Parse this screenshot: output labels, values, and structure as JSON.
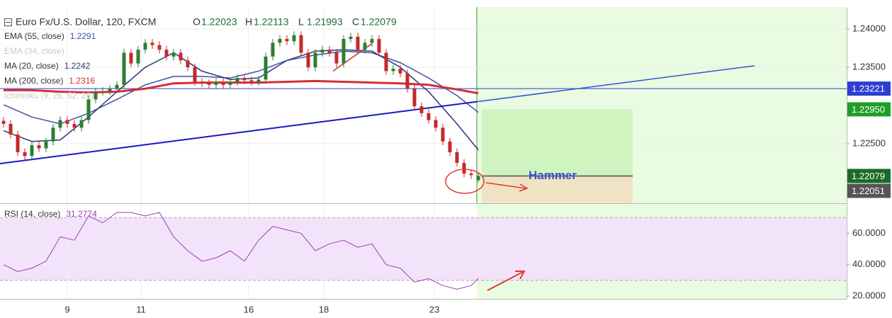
{
  "chart_data": [
    {
      "type": "candlestick",
      "title": "Euro Fx/U.S. Dollar, 120, FXCM",
      "ohlc_letters": [
        "O",
        "H",
        "L",
        "C"
      ],
      "up_color": "#2e7d32",
      "down_color": "#c62828",
      "xlim": [
        -0.5,
        119
      ],
      "ylim": [
        1.21722,
        1.24287
      ],
      "yticks": [
        {
          "value": 1.24,
          "label": "1.24000"
        },
        {
          "value": 1.235,
          "label": "1.23500"
        },
        {
          "value": 1.225,
          "label": "1.22500"
        }
      ],
      "grid": true,
      "x": [
        0,
        1,
        2,
        3,
        4,
        5,
        6,
        7,
        8,
        9,
        10,
        11,
        12,
        13,
        14,
        15,
        16,
        17,
        18,
        19,
        20,
        21,
        22,
        23,
        24,
        25,
        26,
        27,
        28,
        29,
        30,
        31,
        32,
        33,
        34,
        35,
        36,
        37,
        38,
        39,
        40,
        41,
        42,
        43,
        44,
        45,
        46,
        47,
        48,
        49,
        50,
        51,
        52,
        53,
        54,
        55,
        56,
        57,
        58,
        59,
        60,
        61,
        62,
        63,
        64,
        65,
        66,
        67
      ],
      "open": [
        1.228,
        1.2276,
        1.2262,
        1.2239,
        1.2234,
        1.2248,
        1.2244,
        1.2253,
        1.2271,
        1.2281,
        1.2276,
        1.2271,
        1.2281,
        1.2308,
        1.2318,
        1.2319,
        1.2322,
        1.2327,
        1.2369,
        1.2355,
        1.2373,
        1.2382,
        1.2379,
        1.2373,
        1.2364,
        1.2369,
        1.2359,
        1.235,
        1.2331,
        1.2329,
        1.2327,
        1.2331,
        1.2327,
        1.2331,
        1.2336,
        1.2333,
        1.2331,
        1.2334,
        1.2364,
        1.2382,
        1.2387,
        1.2384,
        1.2392,
        1.2369,
        1.235,
        1.2369,
        1.2373,
        1.2369,
        1.2355,
        1.2387,
        1.239,
        1.2373,
        1.2382,
        1.2387,
        1.2369,
        1.2345,
        1.2348,
        1.2342,
        1.2322,
        1.2299,
        1.229,
        1.2281,
        1.2271,
        1.2253,
        1.2239,
        1.2225,
        1.2211,
        1.22023
      ],
      "high": [
        1.2285,
        1.2281,
        1.2267,
        1.2244,
        1.2253,
        1.2253,
        1.2258,
        1.2276,
        1.2286,
        1.2286,
        1.2281,
        1.2286,
        1.2313,
        1.2323,
        1.2324,
        1.2327,
        1.2332,
        1.2374,
        1.2374,
        1.2378,
        1.2387,
        1.2387,
        1.2384,
        1.2378,
        1.2374,
        1.2374,
        1.2364,
        1.2355,
        1.2336,
        1.2334,
        1.2336,
        1.2336,
        1.2336,
        1.2341,
        1.2341,
        1.2338,
        1.2339,
        1.2369,
        1.2387,
        1.2392,
        1.2392,
        1.2397,
        1.2397,
        1.2374,
        1.2374,
        1.2378,
        1.2378,
        1.2374,
        1.2392,
        1.2395,
        1.2395,
        1.2387,
        1.2392,
        1.2392,
        1.2374,
        1.2353,
        1.2353,
        1.2347,
        1.2327,
        1.2304,
        1.2295,
        1.2286,
        1.2276,
        1.2258,
        1.2244,
        1.223,
        1.2216,
        1.22113
      ],
      "low": [
        1.2271,
        1.2257,
        1.2234,
        1.2229,
        1.2229,
        1.2239,
        1.2239,
        1.2248,
        1.2266,
        1.2271,
        1.2266,
        1.2266,
        1.2276,
        1.2303,
        1.2313,
        1.2314,
        1.2317,
        1.2322,
        1.235,
        1.235,
        1.2368,
        1.2374,
        1.2368,
        1.2359,
        1.2359,
        1.2354,
        1.2345,
        1.2326,
        1.2324,
        1.2322,
        1.2322,
        1.2322,
        1.2322,
        1.2326,
        1.2328,
        1.2326,
        1.2326,
        1.2329,
        1.2359,
        1.2377,
        1.2379,
        1.2379,
        1.2364,
        1.2345,
        1.2345,
        1.2364,
        1.2364,
        1.235,
        1.235,
        1.2382,
        1.2368,
        1.2368,
        1.2377,
        1.2364,
        1.234,
        1.234,
        1.2337,
        1.2317,
        1.2294,
        1.2285,
        1.2276,
        1.2266,
        1.2248,
        1.2234,
        1.222,
        1.2206,
        1.2204,
        1.21993
      ],
      "close": [
        1.2276,
        1.2262,
        1.2239,
        1.2234,
        1.2248,
        1.2244,
        1.2253,
        1.2271,
        1.2281,
        1.2276,
        1.2271,
        1.2281,
        1.2308,
        1.2318,
        1.2319,
        1.2322,
        1.2327,
        1.2369,
        1.2355,
        1.2373,
        1.2382,
        1.2379,
        1.2373,
        1.2364,
        1.2369,
        1.2359,
        1.235,
        1.2331,
        1.2329,
        1.2327,
        1.2331,
        1.2327,
        1.2331,
        1.2336,
        1.2333,
        1.2331,
        1.2334,
        1.2364,
        1.2382,
        1.2387,
        1.2384,
        1.2392,
        1.2369,
        1.235,
        1.2369,
        1.2373,
        1.2369,
        1.2355,
        1.2387,
        1.239,
        1.2373,
        1.2382,
        1.2387,
        1.2369,
        1.2345,
        1.2348,
        1.2342,
        1.2322,
        1.2299,
        1.229,
        1.2281,
        1.2271,
        1.2253,
        1.2239,
        1.2225,
        1.2211,
        1.2209,
        1.22079
      ],
      "indicators": [
        {
          "name": "EMA (55, close)",
          "visible": true,
          "color": "#3d51a8",
          "width": 1.5,
          "x": [
            0,
            4,
            8,
            12,
            16,
            20,
            24,
            28,
            32,
            36,
            40,
            44,
            48,
            52,
            56,
            60,
            64,
            67
          ],
          "values": [
            1.2301,
            1.2285,
            1.2276,
            1.229,
            1.2308,
            1.2327,
            1.2338,
            1.2338,
            1.2336,
            1.2345,
            1.2359,
            1.2366,
            1.2371,
            1.2369,
            1.2356,
            1.2336,
            1.2313,
            1.2291
          ]
        },
        {
          "name": "EMA (34, close)",
          "visible": false
        },
        {
          "name": "MA (20, close)",
          "visible": true,
          "color": "#2a3878",
          "width": 1.5,
          "x": [
            0,
            4,
            8,
            12,
            16,
            20,
            24,
            28,
            32,
            36,
            40,
            44,
            48,
            52,
            56,
            60,
            64,
            67
          ],
          "values": [
            1.2267,
            1.2253,
            1.2255,
            1.2285,
            1.2318,
            1.235,
            1.2369,
            1.2345,
            1.2334,
            1.2336,
            1.2359,
            1.2371,
            1.2373,
            1.2371,
            1.235,
            1.2318,
            1.2276,
            1.2242
          ]
        },
        {
          "name": "MA (200, close)",
          "visible": true,
          "color": "#d32f2f",
          "width": 3,
          "x": [
            0,
            4,
            8,
            12,
            16,
            20,
            24,
            28,
            32,
            36,
            40,
            44,
            48,
            52,
            56,
            60,
            64,
            67
          ],
          "values": [
            1.232,
            1.232,
            1.2318,
            1.2317,
            1.2318,
            1.2322,
            1.2329,
            1.233,
            1.233,
            1.233,
            1.2331,
            1.2332,
            1.2331,
            1.233,
            1.2329,
            1.2327,
            1.2321,
            1.2316
          ]
        },
        {
          "name": "Ichimoku (9, 26, 52, 26)",
          "visible": false
        }
      ],
      "trendlines": [
        {
          "x": [
            -0.5,
            66.8
          ],
          "y": [
            1.2224,
            1.2305
          ],
          "color": "#1717c8",
          "width": 2
        },
        {
          "x": [
            66.8,
            106
          ],
          "y": [
            1.2305,
            1.2352
          ],
          "color": "#3552d6",
          "width": 1.5
        },
        {
          "x": [
            46.5,
            52
          ],
          "y": [
            1.2345,
            1.2381
          ],
          "color": "#d32f2f",
          "width": 1.5
        }
      ],
      "future_from": 66.8,
      "position": {
        "x": [
          67.5,
          88.8
        ],
        "entry": 1.22079,
        "target": 1.2295,
        "stop": 1.21722
      },
      "annotation": {
        "text": "Hammer",
        "x": 77.5,
        "y": 1.2208,
        "color": "#3a54c8"
      },
      "levels": [
        {
          "value": 1.23221,
          "label": "1.23221",
          "color": "#2d3ed0",
          "line": true
        },
        {
          "value": 1.2295,
          "label": "1.22950",
          "color": "#1e9e28",
          "line": false
        },
        {
          "value": 1.22079,
          "label": "1.22079",
          "color": "#1c6b2a",
          "line": false
        },
        {
          "value": 1.22051,
          "label": "1.22051",
          "color": "#555555",
          "line": false
        }
      ]
    },
    {
      "type": "line",
      "label": "RSI (14, close)",
      "color": "#9b3fb5",
      "xlim": [
        -0.5,
        119
      ],
      "ylim": [
        18.2,
        78.7
      ],
      "yticks": [
        {
          "value": 60,
          "label": "60.0000"
        },
        {
          "value": 40,
          "label": "40.0000"
        },
        {
          "value": 20,
          "label": "20.0000"
        }
      ],
      "band": [
        30,
        70
      ],
      "xticks": [
        {
          "value": 9.0,
          "label": "9"
        },
        {
          "value": 19.4,
          "label": "11"
        },
        {
          "value": 34.6,
          "label": "16"
        },
        {
          "value": 45.2,
          "label": "18"
        },
        {
          "value": 60.8,
          "label": "23"
        }
      ],
      "x": [
        0,
        2,
        4,
        6,
        8,
        10,
        12,
        14,
        16,
        18,
        20,
        22,
        24,
        26,
        28,
        30,
        32,
        34,
        36,
        38,
        40,
        42,
        44,
        46,
        48,
        50,
        52,
        54,
        56,
        58,
        60,
        62,
        64,
        66,
        67
      ],
      "values": [
        40.0,
        35.6,
        37.8,
        42.2,
        57.8,
        55.6,
        71.1,
        66.7,
        73.3,
        73.3,
        71.1,
        73.3,
        57.8,
        48.9,
        42.2,
        44.4,
        48.9,
        42.2,
        55.6,
        64.4,
        62.2,
        60.0,
        48.9,
        53.3,
        55.6,
        51.1,
        53.3,
        40.0,
        37.8,
        28.9,
        31.1,
        26.7,
        24.4,
        26.7,
        31.2774
      ]
    }
  ]
}
